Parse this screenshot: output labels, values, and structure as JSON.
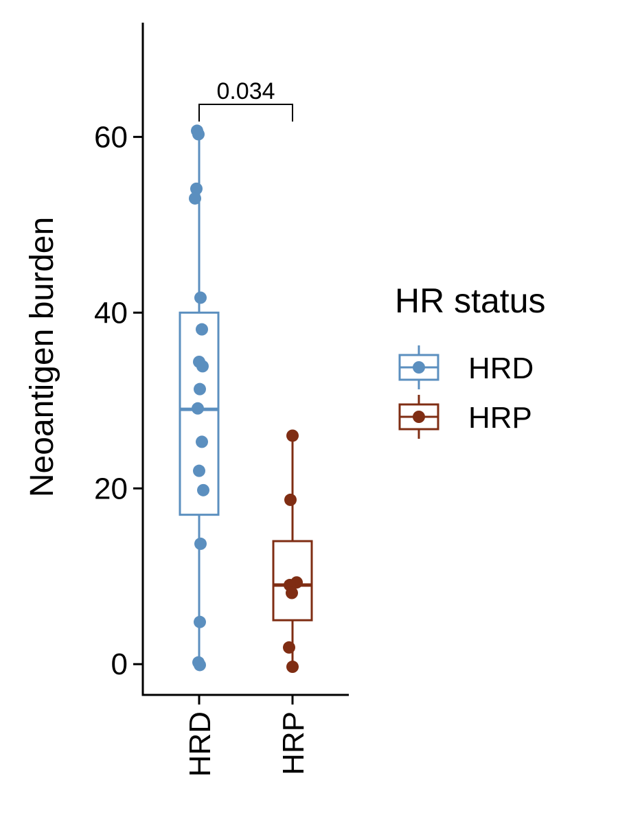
{
  "chart_data": {
    "type": "box",
    "title": "",
    "xlabel": "",
    "ylabel": "Neoantigen burden",
    "ylim": [
      -3.5,
      73
    ],
    "yticks": [
      0,
      20,
      40,
      60
    ],
    "categories": [
      "HRD",
      "HRP"
    ],
    "series": [
      {
        "name": "HRD",
        "color": "#5b8fbf",
        "box": {
          "min": 0,
          "q1": 17,
          "median": 29,
          "q3": 40,
          "max": 60.5
        },
        "points": [
          60.7,
          60.3,
          54.1,
          53.0,
          41.7,
          38.1,
          34.4,
          33.9,
          31.3,
          29.1,
          25.3,
          22.0,
          19.8,
          13.7,
          4.8,
          0.2,
          -0.1
        ]
      },
      {
        "name": "HRP",
        "color": "#7f2d13",
        "box": {
          "min": 0,
          "q1": 5,
          "median": 9,
          "q3": 14,
          "max": 26
        },
        "points": [
          26.0,
          18.7,
          9.3,
          9.0,
          8.1,
          1.9,
          -0.3
        ]
      }
    ],
    "annotation": {
      "text": "0.034",
      "between": [
        "HRD",
        "HRP"
      ]
    },
    "legend": {
      "title": "HR status",
      "placement": "right",
      "items": [
        "HRD",
        "HRP"
      ]
    },
    "grid": false
  }
}
